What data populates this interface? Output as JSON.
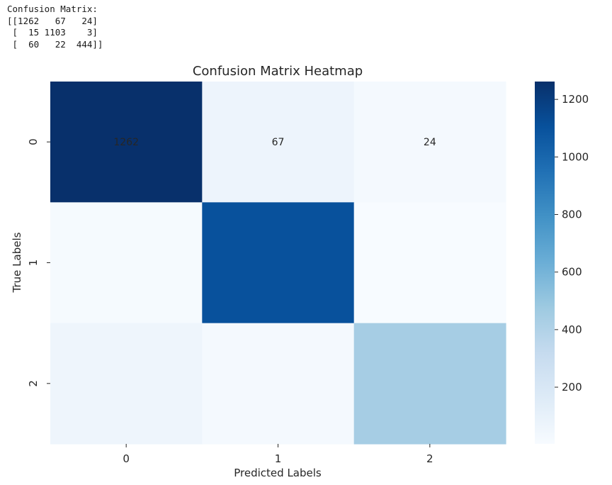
{
  "console": {
    "lines": [
      "Confusion Matrix:",
      "[[1262   67   24]",
      " [  15 1103    3]",
      " [  60   22  444]]"
    ]
  },
  "chart_data": {
    "type": "heatmap",
    "title": "Confusion Matrix Heatmap",
    "xlabel": "Predicted Labels",
    "ylabel": "True Labels",
    "x_categories": [
      "0",
      "1",
      "2"
    ],
    "y_categories": [
      "0",
      "1",
      "2"
    ],
    "matrix": [
      [
        1262,
        67,
        24
      ],
      [
        15,
        1103,
        3
      ],
      [
        60,
        22,
        444
      ]
    ],
    "annotated_cells": [
      [
        0,
        0
      ],
      [
        0,
        1
      ],
      [
        0,
        2
      ]
    ],
    "colormap": "Blues",
    "colorbar": {
      "ticks": [
        200,
        400,
        600,
        800,
        1000,
        1200
      ],
      "range": [
        3,
        1262
      ]
    },
    "annotation_colors": {
      "dark_bg": "#ffffff",
      "light_bg": "#262626"
    }
  }
}
